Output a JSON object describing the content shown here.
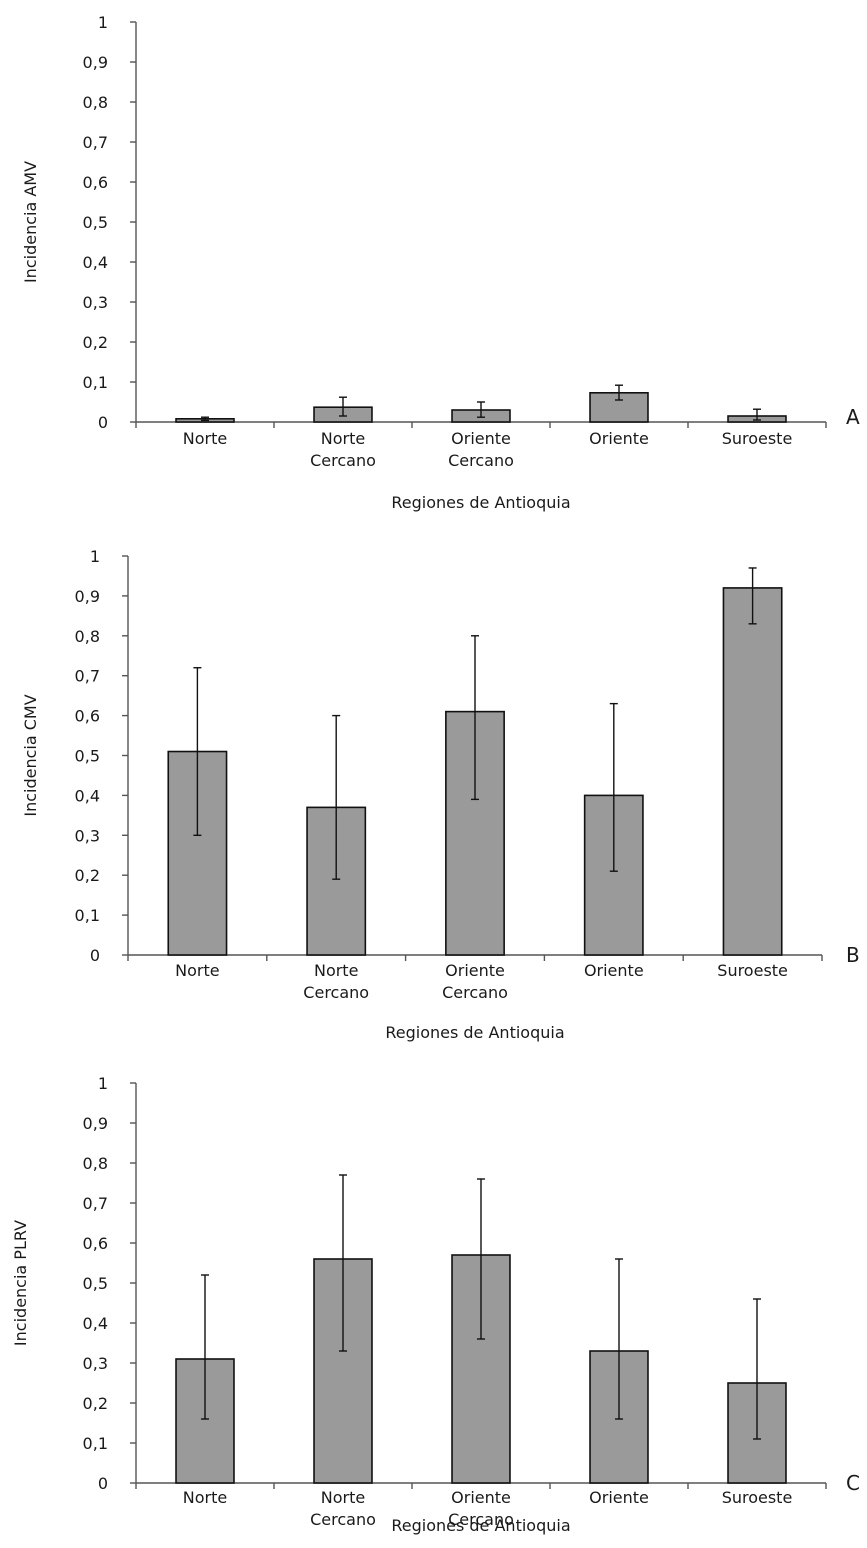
{
  "chart_data": [
    {
      "type": "bar",
      "panel_label": "A",
      "categories": [
        [
          "Norte"
        ],
        [
          "Norte",
          "Cercano"
        ],
        [
          "Oriente",
          "Cercano"
        ],
        [
          "Oriente"
        ],
        [
          "Suroeste"
        ]
      ],
      "values": [
        0.008,
        0.037,
        0.03,
        0.073,
        0.015
      ],
      "error_low": [
        0.004,
        0.015,
        0.012,
        0.055,
        0.005
      ],
      "error_high": [
        0.012,
        0.062,
        0.05,
        0.092,
        0.032
      ],
      "ylabel": "Incidencia AMV",
      "xlabel": "Regiones de Antioquia",
      "ylim": [
        0,
        1
      ],
      "yticks": [
        "0",
        "0,1",
        "0,2",
        "0,3",
        "0,4",
        "0,5",
        "0,6",
        "0,7",
        "0,8",
        "0,9",
        "1"
      ],
      "colors": {
        "bar": "#9a9a9a",
        "outline": "#111111"
      }
    },
    {
      "type": "bar",
      "panel_label": "B",
      "categories": [
        [
          "Norte"
        ],
        [
          "Norte",
          "Cercano"
        ],
        [
          "Oriente",
          "Cercano"
        ],
        [
          "Oriente"
        ],
        [
          "Suroeste"
        ]
      ],
      "values": [
        0.51,
        0.37,
        0.61,
        0.4,
        0.92
      ],
      "error_low": [
        0.3,
        0.19,
        0.39,
        0.21,
        0.83
      ],
      "error_high": [
        0.72,
        0.6,
        0.8,
        0.63,
        0.97
      ],
      "ylabel": "Incidencia CMV",
      "xlabel": "Regiones de Antioquia",
      "ylim": [
        0,
        1
      ],
      "yticks": [
        "0",
        "0,1",
        "0,2",
        "0,3",
        "0,4",
        "0,5",
        "0,6",
        "0,7",
        "0,8",
        "0,9",
        "1"
      ],
      "colors": {
        "bar": "#9a9a9a",
        "outline": "#111111"
      }
    },
    {
      "type": "bar",
      "panel_label": "C",
      "categories": [
        [
          "Norte"
        ],
        [
          "Norte",
          "Cercano"
        ],
        [
          "Oriente",
          "Cercano"
        ],
        [
          "Oriente"
        ],
        [
          "Suroeste"
        ]
      ],
      "values": [
        0.31,
        0.56,
        0.57,
        0.33,
        0.25
      ],
      "error_low": [
        0.16,
        0.33,
        0.36,
        0.16,
        0.11
      ],
      "error_high": [
        0.52,
        0.77,
        0.76,
        0.56,
        0.46
      ],
      "ylabel": "Incidencia PLRV",
      "xlabel": "Regiones de Antioquia",
      "ylim": [
        0,
        1
      ],
      "yticks": [
        "0",
        "0,1",
        "0,2",
        "0,3",
        "0,4",
        "0,5",
        "0,6",
        "0,7",
        "0,8",
        "0,9",
        "1"
      ],
      "colors": {
        "bar": "#9a9a9a",
        "outline": "#111111"
      }
    }
  ]
}
